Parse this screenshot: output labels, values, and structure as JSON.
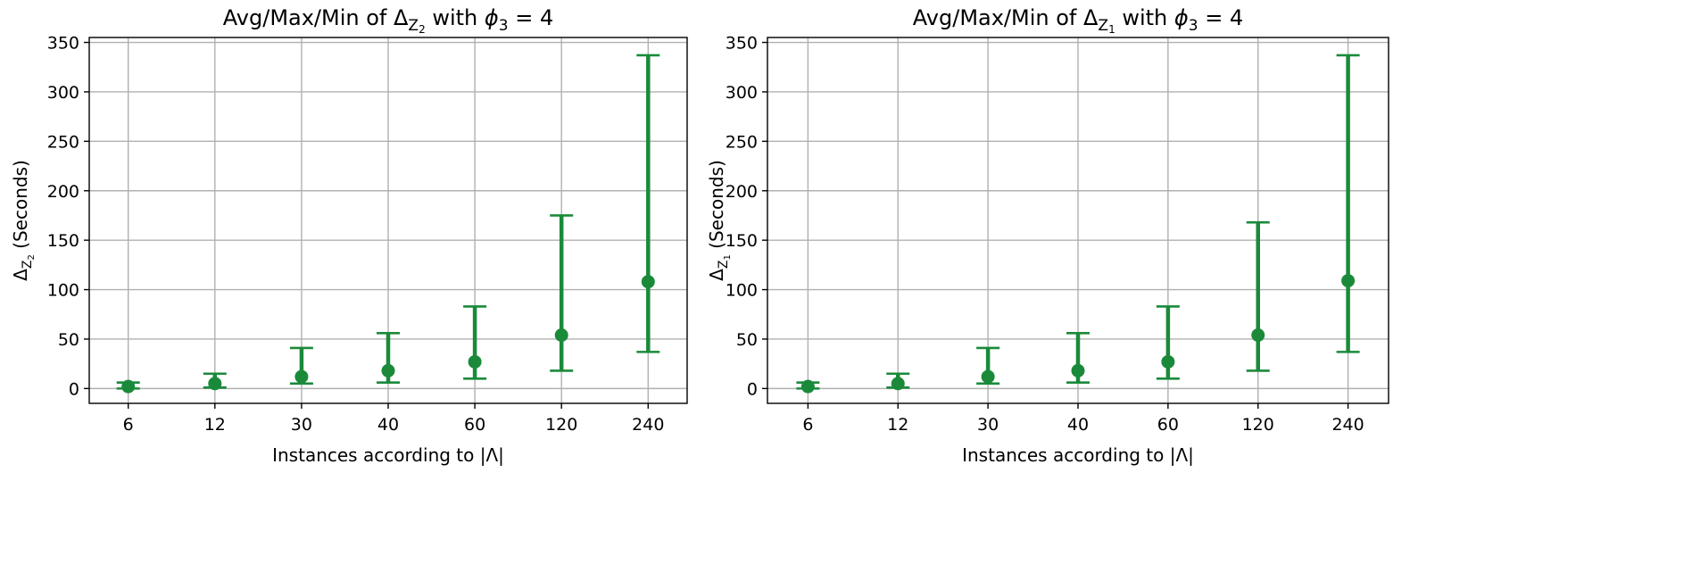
{
  "chart_data": [
    {
      "type": "scatter",
      "title": "Avg/Max/Min of Δ_{Z_2} with ϕ_3 = 4",
      "title_parts": {
        "prefix": "Avg/Max/Min of Δ",
        "sub": "Z",
        "subsub": "2",
        "middle": " with ",
        "phi": "ϕ",
        "phi_sub": "3",
        "suffix": " = 4"
      },
      "xlabel": "Instances according to |Λ|",
      "ylabel": "Δ_{Z_2} (Seconds)",
      "ylabel_parts": {
        "delta": "Δ",
        "sub": "Z",
        "subsub": "2",
        "rest": " (Seconds)"
      },
      "categories": [
        "6",
        "12",
        "30",
        "40",
        "60",
        "120",
        "240"
      ],
      "ylim": [
        -15,
        355
      ],
      "yticks": [
        0,
        50,
        100,
        150,
        200,
        250,
        300,
        350
      ],
      "grid": true,
      "color": "#1a8a3a",
      "series": [
        {
          "avg": [
            2,
            5,
            12,
            18,
            27,
            54,
            108
          ],
          "min": [
            0,
            1,
            5,
            6,
            10,
            18,
            37
          ],
          "max": [
            6,
            15,
            41,
            56,
            83,
            175,
            337
          ]
        }
      ]
    },
    {
      "type": "scatter",
      "title": "Avg/Max/Min of Δ_{Z_1} with ϕ_3 = 4",
      "title_parts": {
        "prefix": "Avg/Max/Min of Δ",
        "sub": "Z",
        "subsub": "1",
        "middle": " with ",
        "phi": "ϕ",
        "phi_sub": "3",
        "suffix": " = 4"
      },
      "xlabel": "Instances according to |Λ|",
      "ylabel": "Δ_{Z_1} (Seconds)",
      "ylabel_parts": {
        "delta": "Δ",
        "sub": "Z",
        "subsub": "1",
        "rest": " (Seconds)"
      },
      "categories": [
        "6",
        "12",
        "30",
        "40",
        "60",
        "120",
        "240"
      ],
      "ylim": [
        -15,
        355
      ],
      "yticks": [
        0,
        50,
        100,
        150,
        200,
        250,
        300,
        350
      ],
      "grid": true,
      "color": "#1a8a3a",
      "series": [
        {
          "avg": [
            2,
            5,
            12,
            18,
            27,
            54,
            109
          ],
          "min": [
            0,
            1,
            5,
            6,
            10,
            18,
            37
          ],
          "max": [
            6,
            15,
            41,
            56,
            83,
            168,
            337
          ]
        }
      ]
    }
  ]
}
